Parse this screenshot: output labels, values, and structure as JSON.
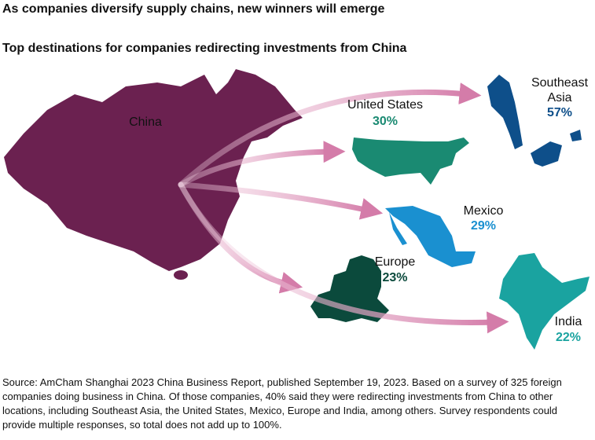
{
  "header": {
    "title": "As companies diversify supply chains, new winners will emerge",
    "subtitle": "Top destinations for companies redirecting investments from China"
  },
  "origin": {
    "label": "China"
  },
  "destinations": [
    {
      "label": "United States",
      "value_label": "30%"
    },
    {
      "label": "Southeast Asia",
      "value_label": "57%"
    },
    {
      "label": "Mexico",
      "value_label": "29%"
    },
    {
      "label": "Europe",
      "value_label": "23%"
    },
    {
      "label": "India",
      "value_label": "22%"
    }
  ],
  "source": "Source: AmCham Shanghai 2023 China Business Report, published September 19, 2023. Based on a survey of 325 foreign companies doing business in China. Of those companies, 40% said they were redirecting investments from China to other locations, including Southeast Asia, the United States, Mexico, Europe and India, among others. Survey respondents could provide multiple responses, so total does not add up to 100%."
}
